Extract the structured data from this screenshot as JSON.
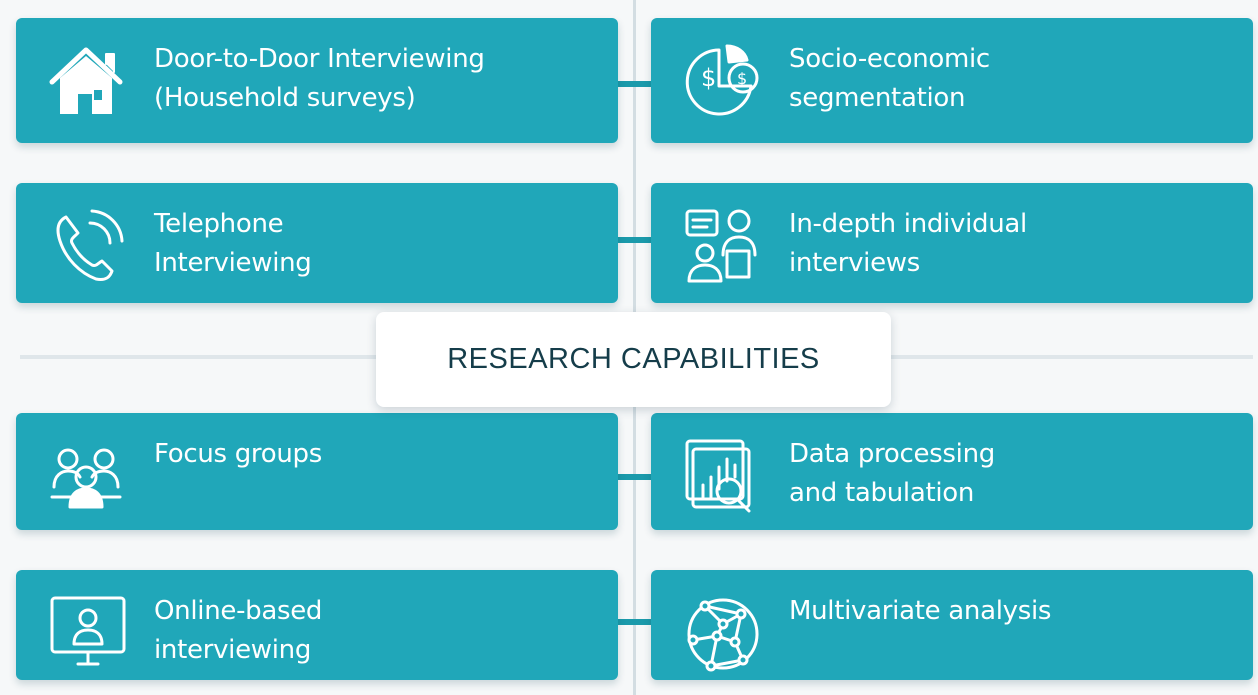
{
  "title": "RESEARCH CAPABILITIES",
  "colors": {
    "card": "#20a7b9",
    "title_text": "#153d4a",
    "background": "#f6f8f9"
  },
  "left_items": [
    {
      "label": "Door-to-Door Interviewing\n(Household surveys)",
      "icon": "house-icon"
    },
    {
      "label": "Telephone\nInterviewing",
      "icon": "phone-icon"
    },
    {
      "label": "Focus groups",
      "icon": "group-icon"
    },
    {
      "label": "Online-based\ninterviewing",
      "icon": "monitor-user-icon"
    }
  ],
  "right_items": [
    {
      "label": "Socio-economic\nsegmentation",
      "icon": "pie-dollar-icon"
    },
    {
      "label": "In-depth individual\ninterviews",
      "icon": "interview-icon"
    },
    {
      "label": "Data processing\nand tabulation",
      "icon": "chart-magnifier-icon"
    },
    {
      "label": "Multivariate analysis",
      "icon": "network-globe-icon"
    }
  ]
}
